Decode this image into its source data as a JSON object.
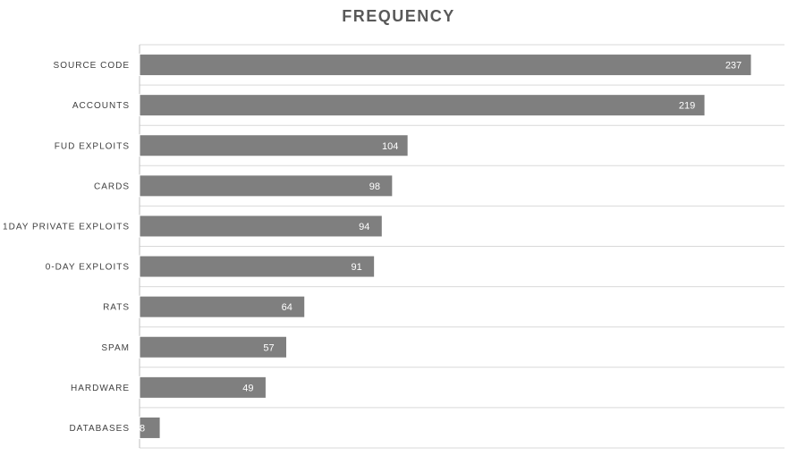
{
  "chart_data": {
    "type": "bar",
    "orientation": "horizontal",
    "title": "FREQUENCY",
    "xlabel": "",
    "ylabel": "",
    "categories": [
      "SOURCE CODE",
      "ACCOUNTS",
      "FUD EXPLOITS",
      "CARDS",
      "1DAY PRIVATE EXPLOITS",
      "0-DAY EXPLOITS",
      "RATS",
      "SPAM",
      "HARDWARE",
      "DATABASES"
    ],
    "values": [
      237,
      219,
      104,
      98,
      94,
      91,
      64,
      57,
      49,
      8
    ],
    "xlim": [
      0,
      240
    ],
    "grid": "horizontal",
    "legend": "none",
    "data_labels": "inside-end",
    "colors": {
      "bar": "#7f7f7f",
      "bar_border": "#ffffff",
      "gridline": "#d9d9d9",
      "axis": "#bfbfbf",
      "title": "#595959",
      "category_text": "#404040",
      "value_text": "#ffffff"
    }
  }
}
